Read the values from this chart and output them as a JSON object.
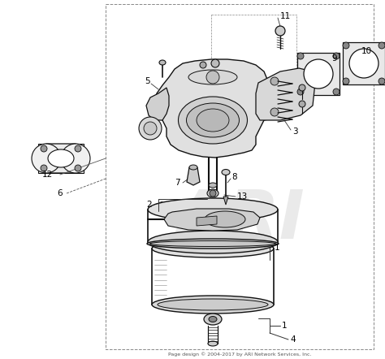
{
  "footer_text": "Page design © 2004-2017 by ARI Network Services, Inc.",
  "background_color": "#ffffff",
  "line_color": "#111111",
  "watermark_text": "ARI",
  "watermark_color": "#cccccc",
  "fig_width": 4.74,
  "fig_height": 4.42,
  "dpi": 100
}
